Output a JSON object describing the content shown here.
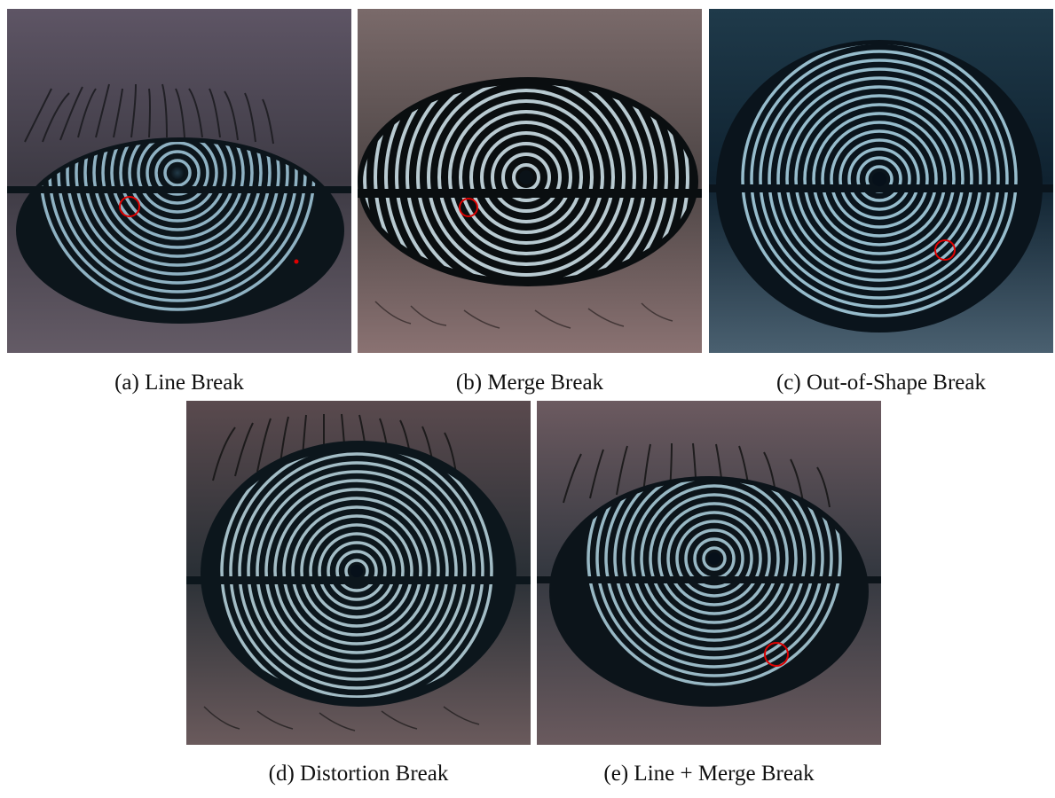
{
  "figure": {
    "panels": [
      {
        "id": "a",
        "caption": "(a) Line Break",
        "subject": "eye-with-placido-rings",
        "marker_color": "#e00000"
      },
      {
        "id": "b",
        "caption": "(b) Merge Break",
        "subject": "eye-with-placido-rings",
        "marker_color": "#e00000"
      },
      {
        "id": "c",
        "caption": "(c) Out-of-Shape Break",
        "subject": "eye-with-placido-rings",
        "marker_color": "#e00000"
      },
      {
        "id": "d",
        "caption": "(d) Distortion Break",
        "subject": "eye-with-placido-rings"
      },
      {
        "id": "e",
        "caption": "(e) Line + Merge Break",
        "subject": "eye-with-placido-rings",
        "marker_color": "#e00000"
      }
    ]
  }
}
